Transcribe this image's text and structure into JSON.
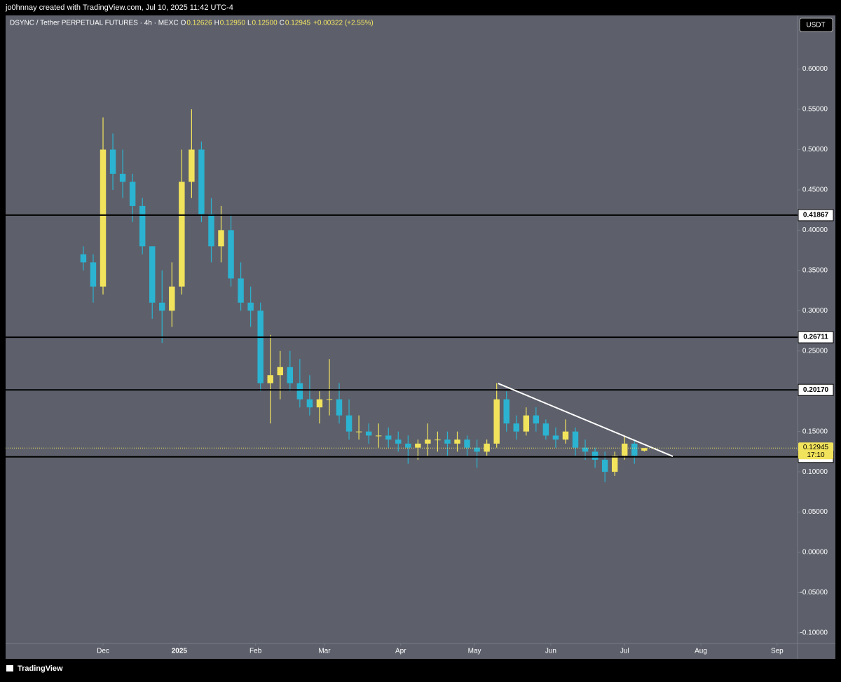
{
  "chart_data": {
    "type": "candlestick",
    "header": "jo0hnnay created with TradingView.com, Jul 10, 2025 11:42 UTC-4",
    "symbol": "DSYNC / Tether PERPETUAL FUTURES · 4h · MEXC",
    "legend_items": [
      {
        "key": "O",
        "value": "0.12626"
      },
      {
        "key": "H",
        "value": "0.12950"
      },
      {
        "key": "L",
        "value": "0.12500"
      },
      {
        "key": "C",
        "value": "0.12945"
      }
    ],
    "change": "+0.00322 (+2.55%)",
    "currency": "USDT",
    "footer": "TradingView",
    "up_color": "#f2e35c",
    "down_color": "#2bb3d1",
    "x": [
      -8,
      -4,
      0,
      4,
      8,
      12,
      16,
      20,
      24,
      28,
      32,
      36,
      40,
      44,
      48,
      52,
      56,
      60,
      64,
      68,
      72,
      76,
      80,
      84,
      88,
      92,
      96,
      100,
      104,
      108,
      112,
      116,
      120,
      124,
      128,
      132,
      136,
      140,
      144,
      148,
      152,
      156,
      160,
      164,
      168,
      172,
      176,
      180,
      184,
      188,
      192,
      196,
      200,
      204,
      208,
      212,
      216,
      220
    ],
    "open": [
      0.37,
      0.36,
      0.33,
      0.5,
      0.47,
      0.46,
      0.43,
      0.38,
      0.31,
      0.3,
      0.33,
      0.46,
      0.5,
      0.42,
      0.38,
      0.4,
      0.34,
      0.31,
      0.3,
      0.21,
      0.22,
      0.23,
      0.21,
      0.19,
      0.18,
      0.19,
      0.19,
      0.17,
      0.15,
      0.15,
      0.145,
      0.145,
      0.14,
      0.135,
      0.13,
      0.135,
      0.14,
      0.14,
      0.135,
      0.14,
      0.13,
      0.125,
      0.135,
      0.19,
      0.16,
      0.15,
      0.17,
      0.16,
      0.145,
      0.14,
      0.15,
      0.13,
      0.125,
      0.115,
      0.1,
      0.12,
      0.135,
      0.12626
    ],
    "high": [
      0.38,
      0.37,
      0.54,
      0.52,
      0.5,
      0.47,
      0.44,
      0.38,
      0.35,
      0.36,
      0.5,
      0.55,
      0.51,
      0.44,
      0.43,
      0.42,
      0.36,
      0.33,
      0.31,
      0.27,
      0.25,
      0.25,
      0.24,
      0.22,
      0.2,
      0.24,
      0.21,
      0.19,
      0.17,
      0.16,
      0.16,
      0.155,
      0.15,
      0.145,
      0.14,
      0.16,
      0.15,
      0.15,
      0.15,
      0.145,
      0.14,
      0.14,
      0.21,
      0.2,
      0.17,
      0.18,
      0.18,
      0.165,
      0.155,
      0.165,
      0.155,
      0.14,
      0.13,
      0.125,
      0.125,
      0.145,
      0.14,
      0.1295
    ],
    "low": [
      0.35,
      0.31,
      0.32,
      0.45,
      0.44,
      0.41,
      0.37,
      0.29,
      0.26,
      0.28,
      0.32,
      0.44,
      0.41,
      0.36,
      0.36,
      0.33,
      0.3,
      0.28,
      0.2,
      0.16,
      0.19,
      0.2,
      0.18,
      0.17,
      0.16,
      0.17,
      0.16,
      0.14,
      0.14,
      0.135,
      0.13,
      0.13,
      0.125,
      0.11,
      0.115,
      0.12,
      0.125,
      0.12,
      0.125,
      0.12,
      0.105,
      0.12,
      0.13,
      0.15,
      0.14,
      0.145,
      0.15,
      0.14,
      0.13,
      0.135,
      0.12,
      0.115,
      0.105,
      0.087,
      0.095,
      0.115,
      0.11,
      0.125
    ],
    "close": [
      0.36,
      0.33,
      0.5,
      0.47,
      0.46,
      0.43,
      0.38,
      0.31,
      0.3,
      0.33,
      0.46,
      0.5,
      0.42,
      0.38,
      0.4,
      0.34,
      0.31,
      0.3,
      0.21,
      0.22,
      0.23,
      0.21,
      0.19,
      0.18,
      0.19,
      0.19,
      0.17,
      0.15,
      0.15,
      0.145,
      0.145,
      0.14,
      0.135,
      0.13,
      0.135,
      0.14,
      0.14,
      0.135,
      0.14,
      0.13,
      0.125,
      0.135,
      0.19,
      0.16,
      0.15,
      0.17,
      0.16,
      0.145,
      0.14,
      0.15,
      0.13,
      0.125,
      0.115,
      0.1,
      0.12,
      0.135,
      0.12,
      0.12945
    ],
    "xlim": [
      -39.6,
      282.3
    ],
    "xticks": [
      {
        "value": 0,
        "label": "Dec"
      },
      {
        "value": 31,
        "label": "2025"
      },
      {
        "value": 62,
        "label": "Feb"
      },
      {
        "value": 90,
        "label": "Mar"
      },
      {
        "value": 121,
        "label": "Apr"
      },
      {
        "value": 151,
        "label": "May"
      },
      {
        "value": 182,
        "label": "Jun"
      },
      {
        "value": 212,
        "label": "Jul"
      },
      {
        "value": 243,
        "label": "Aug"
      },
      {
        "value": 274,
        "label": "Sep"
      }
    ],
    "ylim": [
      -0.1131,
      0.6666
    ],
    "yticks": [
      {
        "value": -0.1,
        "label": "-0.10000"
      },
      {
        "value": -0.05,
        "label": "-0.05000"
      },
      {
        "value": 0,
        "label": "0.00000"
      },
      {
        "value": 0.05,
        "label": "0.05000"
      },
      {
        "value": 0.1,
        "label": "0.10000"
      },
      {
        "value": 0.15,
        "label": "0.15000"
      },
      {
        "value": 0.2,
        "label": "0.20000"
      },
      {
        "value": 0.25,
        "label": "0.25000"
      },
      {
        "value": 0.3,
        "label": "0.30000"
      },
      {
        "value": 0.35,
        "label": "0.35000"
      },
      {
        "value": 0.4,
        "label": "0.40000"
      },
      {
        "value": 0.45,
        "label": "0.45000"
      },
      {
        "value": 0.5,
        "label": "0.50000"
      },
      {
        "value": 0.55,
        "label": "0.55000"
      },
      {
        "value": 0.6,
        "label": "0.60000"
      }
    ],
    "levels": [
      0.41867,
      0.26711,
      {
        "value": 0.2017,
        "label": "0.20170"
      },
      0.11855
    ],
    "last_price": 0.12945,
    "countdown": "17:10",
    "trendline": {
      "x": [
        160.6,
        231.6
      ],
      "y": [
        0.2097,
        0.1192
      ]
    }
  }
}
